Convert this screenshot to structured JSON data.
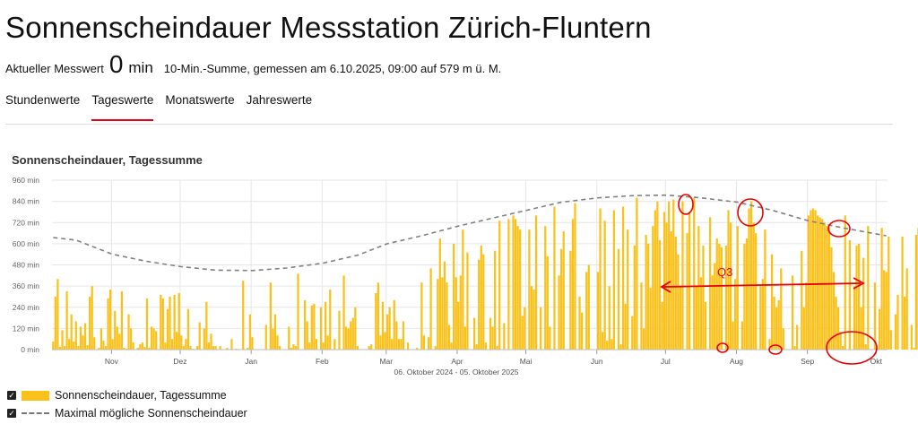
{
  "header": {
    "title": "Sonnenscheindauer Messstation Zürich-Fluntern",
    "measure_label": "Aktueller Messwert",
    "measure_value": "0",
    "measure_unit": "min",
    "measure_desc": "10-Min.-Summe, gemessen am 6.10.2025, 09:00 auf 579 m ü. M."
  },
  "tabs": [
    {
      "label": "Stundenwerte",
      "active": false
    },
    {
      "label": "Tageswerte",
      "active": true
    },
    {
      "label": "Monatswerte",
      "active": false
    },
    {
      "label": "Jahreswerte",
      "active": false
    }
  ],
  "chart_title": "Sonnenscheindauer, Tagessumme",
  "legend": {
    "bar_label": "Sonnenscheindauer, Tagessumme",
    "line_label": "Maximal mögliche Sonnenscheindauer"
  },
  "colors": {
    "bar": "#fbc11b",
    "line": "#808080",
    "accent": "#e3001b",
    "annotation": "#e60000"
  },
  "annotations": {
    "text": "Q3"
  },
  "chart_data": {
    "type": "bar",
    "date_range_label": "06. Oktober 2024 - 05. Oktober 2025",
    "start_date": "2024-10-06",
    "end_date": "2025-10-05",
    "ylim": [
      0,
      960
    ],
    "y_ticks": [
      0,
      120,
      240,
      360,
      480,
      600,
      720,
      840,
      960
    ],
    "y_tick_labels": [
      "0 min",
      "120 min",
      "240 min",
      "360 min",
      "480 min",
      "600 min",
      "720 min",
      "840 min",
      "960 min"
    ],
    "x_tick_labels": [
      "Nov",
      "Dez",
      "Jan",
      "Feb",
      "Mar",
      "Apr",
      "Mai",
      "Jun",
      "Jul",
      "Aug",
      "Sep",
      "Okt"
    ],
    "grid": true,
    "series": [
      {
        "name": "Sonnenscheindauer, Tagessumme",
        "type": "bar",
        "values": [
          45,
          300,
          400,
          15,
          110,
          20,
          330,
          60,
          200,
          45,
          160,
          20,
          130,
          80,
          150,
          25,
          300,
          360,
          70,
          0,
          10,
          120,
          50,
          20,
          290,
          340,
          60,
          220,
          130,
          90,
          330,
          10,
          5,
          200,
          120,
          40,
          0,
          10,
          30,
          40,
          15,
          290,
          10,
          130,
          120,
          105,
          0,
          310,
          290,
          40,
          230,
          300,
          60,
          310,
          100,
          320,
          80,
          20,
          60,
          230,
          20,
          5,
          0,
          20,
          155,
          0,
          120,
          270,
          40,
          90,
          20,
          20,
          0,
          20,
          0,
          0,
          10,
          0,
          60,
          0,
          5,
          0,
          0,
          390,
          0,
          10,
          200,
          70,
          0,
          0,
          0,
          0,
          0,
          140,
          0,
          380,
          120,
          200,
          80,
          20,
          0,
          0,
          0,
          130,
          10,
          30,
          20,
          430,
          0,
          0,
          280,
          160,
          40,
          250,
          260,
          60,
          0,
          240,
          40,
          270,
          80,
          340,
          0,
          60,
          0,
          220,
          0,
          420,
          130,
          120,
          160,
          180,
          240,
          20,
          0,
          0,
          0,
          0,
          20,
          30,
          0,
          320,
          380,
          80,
          270,
          100,
          200,
          240,
          60,
          280,
          160,
          60,
          60,
          160,
          0,
          40,
          0,
          0,
          0,
          10,
          0,
          380,
          80,
          0,
          70,
          460,
          0,
          20,
          400,
          630,
          410,
          500,
          380,
          140,
          40,
          600,
          410,
          270,
          420,
          680,
          130,
          550,
          0,
          0,
          180,
          30,
          510,
          590,
          540,
          40,
          0,
          180,
          130,
          560,
          20,
          730,
          0,
          150,
          0,
          740,
          0,
          760,
          740,
          700,
          680,
          190,
          240,
          0,
          680,
          360,
          340,
          760,
          0,
          240,
          0,
          700,
          530,
          130,
          0,
          810,
          0,
          420,
          570,
          670,
          0,
          0,
          560,
          740,
          830,
          0,
          300,
          210,
          0,
          440,
          480,
          0,
          0,
          0,
          440,
          800,
          100,
          730,
          50,
          360,
          60,
          790,
          0,
          570,
          30,
          810,
          260,
          680,
          0,
          190,
          590,
          860,
          0,
          380,
          120,
          650,
          600,
          350,
          700,
          790,
          840,
          620,
          270,
          780,
          720,
          840,
          670,
          850,
          640,
          540,
          360,
          840,
          0,
          660,
          780,
          0,
          860,
          360,
          700,
          410,
          590,
          270,
          0,
          750,
          420,
          490,
          630,
          600,
          580,
          0,
          590,
          790,
          720,
          160,
          400,
          700,
          0,
          160,
          600,
          630,
          800,
          840,
          720,
          660,
          0,
          360,
          400,
          680,
          0,
          60,
          540,
          300,
          240,
          280,
          460,
          120,
          0,
          0,
          0,
          420,
          20,
          140,
          0,
          560,
          240,
          380,
          760,
          790,
          800,
          790,
          760,
          750,
          740,
          720,
          700,
          690,
          580,
          440,
          300,
          240,
          100,
          20,
          760,
          0,
          620,
          0,
          360,
          590,
          600,
          240,
          520,
          30,
          700,
          0,
          0,
          380,
          10,
          230,
          690,
          450,
          440,
          640,
          110,
          0,
          200,
          310,
          0,
          640,
          300,
          460,
          0,
          140,
          10,
          650,
          690,
          660,
          10,
          120,
          270,
          400,
          360,
          320,
          210,
          10,
          0,
          0,
          0,
          0,
          0,
          40,
          0,
          280,
          320,
          0,
          400,
          20,
          200,
          180
        ]
      },
      {
        "name": "Maximal mögliche Sonnenscheindauer",
        "type": "line",
        "dashed": true,
        "x": [
          "2024-10-06",
          "2024-10-16",
          "2024-11-01",
          "2024-11-16",
          "2024-12-01",
          "2024-12-16",
          "2025-01-01",
          "2025-01-16",
          "2025-02-01",
          "2025-02-16",
          "2025-03-01",
          "2025-03-16",
          "2025-04-01",
          "2025-04-16",
          "2025-05-01",
          "2025-05-16",
          "2025-06-01",
          "2025-06-16",
          "2025-07-01",
          "2025-07-16",
          "2025-08-01",
          "2025-08-16",
          "2025-09-01",
          "2025-09-16",
          "2025-10-05"
        ],
        "y": [
          635,
          620,
          540,
          500,
          470,
          450,
          448,
          462,
          490,
          535,
          600,
          645,
          700,
          745,
          790,
          835,
          860,
          872,
          875,
          860,
          835,
          790,
          730,
          690,
          645
        ]
      }
    ]
  }
}
